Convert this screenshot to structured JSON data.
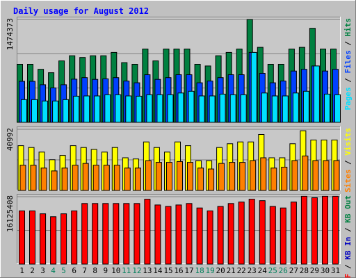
{
  "title": "Daily usage for August 2012",
  "colors": {
    "background": "#c0c0c0",
    "plot_bg": "#c8c8c8",
    "title": "#0000ff",
    "hits": "#008040",
    "files": "#0040ff",
    "pages": "#00e0ff",
    "visits": "#ffff00",
    "sites": "#ff8000",
    "kbin": "#0000c0",
    "kbout": "#008040",
    "kbf": "#ff0000",
    "weekend_label": "#00805c"
  },
  "chart_data": [
    {
      "type": "bar",
      "categories": [
        "1",
        "2",
        "3",
        "4",
        "5",
        "6",
        "7",
        "8",
        "9",
        "10",
        "11",
        "12",
        "13",
        "14",
        "15",
        "16",
        "17",
        "18",
        "19",
        "20",
        "21",
        "22",
        "23",
        "24",
        "25",
        "26",
        "27",
        "28",
        "29",
        "30",
        "31"
      ],
      "weekend_days": [
        "4",
        "5",
        "11",
        "12",
        "18",
        "19",
        "25",
        "26"
      ],
      "ymax_label": "1474373",
      "ylim": [
        0,
        1474373
      ],
      "legend": [
        "Pages",
        "Files",
        "Hits"
      ],
      "series": [
        {
          "name": "Hits",
          "values": [
            832000,
            832000,
            760000,
            711000,
            881000,
            954000,
            929000,
            954000,
            954000,
            1002000,
            856000,
            832000,
            1051000,
            881000,
            1051000,
            1051000,
            1051000,
            832000,
            808000,
            954000,
            1002000,
            1051000,
            1474000,
            1075000,
            832000,
            832000,
            1051000,
            1075000,
            1348000,
            1051000,
            1051000
          ]
        },
        {
          "name": "Files",
          "values": [
            588000,
            588000,
            539000,
            493000,
            539000,
            619000,
            641000,
            616000,
            624000,
            641000,
            592000,
            567000,
            682000,
            616000,
            641000,
            682000,
            682000,
            567000,
            592000,
            641000,
            682000,
            682000,
            1002000,
            702000,
            567000,
            592000,
            735000,
            760000,
            808000,
            735000,
            760000
          ]
        },
        {
          "name": "Pages",
          "values": [
            326000,
            326000,
            306000,
            306000,
            326000,
            375000,
            379000,
            379000,
            395000,
            395000,
            379000,
            375000,
            395000,
            395000,
            395000,
            420000,
            445000,
            379000,
            379000,
            404000,
            395000,
            395000,
            1002000,
            420000,
            379000,
            379000,
            420000,
            445000,
            808000,
            404000,
            395000
          ]
        }
      ]
    },
    {
      "type": "bar",
      "categories": [
        "1",
        "2",
        "3",
        "4",
        "5",
        "6",
        "7",
        "8",
        "9",
        "10",
        "11",
        "12",
        "13",
        "14",
        "15",
        "16",
        "17",
        "18",
        "19",
        "20",
        "21",
        "22",
        "23",
        "24",
        "25",
        "26",
        "27",
        "28",
        "29",
        "30",
        "31"
      ],
      "ymax_label": "40992",
      "ylim": [
        0,
        40992
      ],
      "legend": [
        "Sites",
        "Visits"
      ],
      "series": [
        {
          "name": "Visits",
          "values": [
            30000,
            28800,
            25700,
            20600,
            23500,
            30000,
            28800,
            27500,
            25700,
            28800,
            21900,
            21100,
            32500,
            28800,
            25700,
            32500,
            30000,
            19900,
            19900,
            28800,
            31300,
            32500,
            32500,
            37500,
            21900,
            21900,
            31300,
            40000,
            33800,
            33800,
            33800
          ]
        },
        {
          "name": "Sites",
          "values": [
            16900,
            16900,
            15000,
            13100,
            15000,
            16900,
            18100,
            16900,
            16900,
            16900,
            15000,
            15000,
            20000,
            18800,
            18800,
            19400,
            18800,
            15000,
            14400,
            18100,
            18800,
            18800,
            20000,
            21900,
            15000,
            15600,
            20000,
            23100,
            20000,
            20000,
            20000
          ]
        }
      ]
    },
    {
      "type": "bar",
      "categories": [
        "1",
        "2",
        "3",
        "4",
        "5",
        "6",
        "7",
        "8",
        "9",
        "10",
        "11",
        "12",
        "13",
        "14",
        "15",
        "16",
        "17",
        "18",
        "19",
        "20",
        "21",
        "22",
        "23",
        "24",
        "25",
        "26",
        "27",
        "28",
        "29",
        "30",
        "31"
      ],
      "ymax_label": "16125408",
      "ylim": [
        0,
        16125408
      ],
      "legend": [
        "KB F",
        "KB In",
        "KB Out"
      ],
      "series": [
        {
          "name": "KB F",
          "values": [
            12740000,
            12740000,
            12040000,
            11340000,
            12040000,
            12740000,
            14490000,
            14490000,
            14490000,
            14490000,
            14490000,
            14490000,
            15530000,
            14140000,
            13790000,
            14140000,
            14490000,
            13440000,
            12740000,
            13790000,
            14490000,
            14840000,
            15530000,
            15180000,
            13790000,
            13440000,
            14840000,
            16230000,
            15880000,
            16230000,
            16230000
          ]
        }
      ]
    }
  ]
}
